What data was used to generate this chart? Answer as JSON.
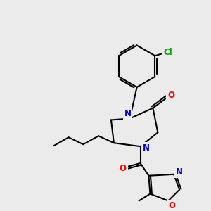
{
  "bg_color": "#ebebeb",
  "bond_color": "#000000",
  "bond_width": 1.5,
  "atom_colors": {
    "N": "#0000cc",
    "O": "#ff0000",
    "Cl": "#00aa00",
    "C": "#000000"
  },
  "font_size_atom": 8.5
}
